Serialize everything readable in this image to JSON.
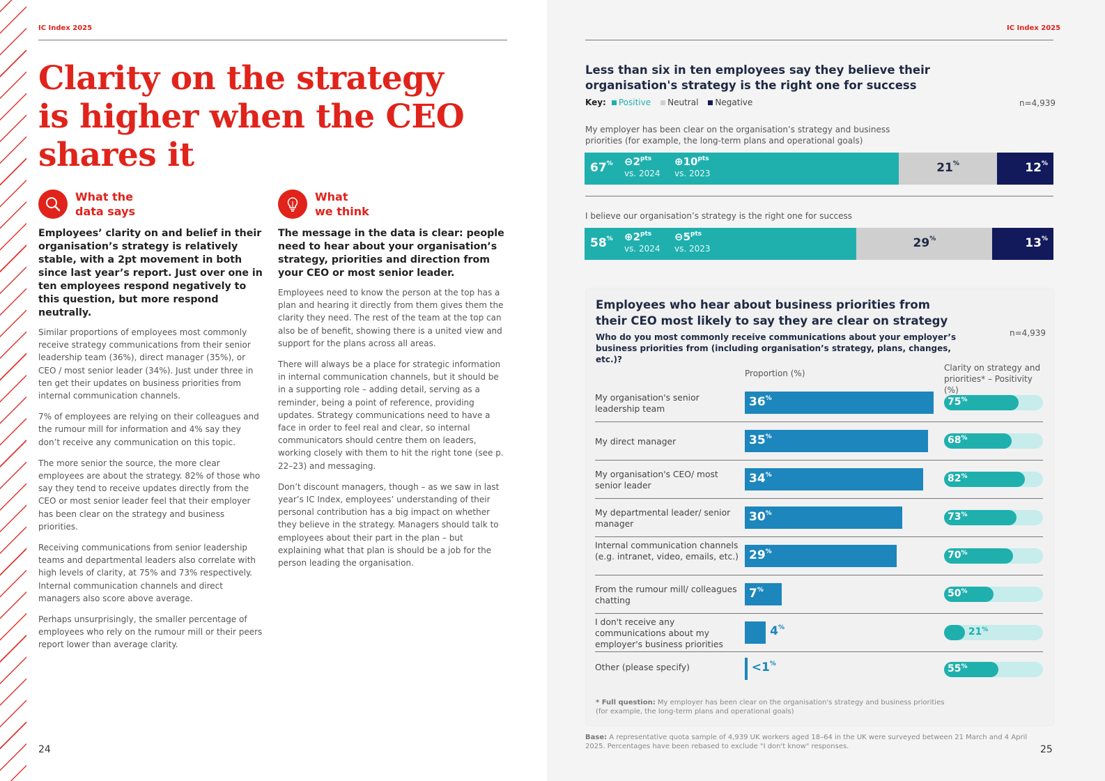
{
  "left_page": {
    "running_head": "IC Index 2025",
    "page_number": "24",
    "title": "Clarity on the strategy is higher when the CEO shares it",
    "col1": {
      "icon": "magnifier-icon",
      "heading": "What the\ndata says",
      "lead": "Employees’ clarity on and belief in their organisation’s strategy is relatively stable, with a 2pt movement in both since last year’s report. Just over one in ten employees respond negatively to this question, but more respond neutrally.",
      "paragraphs": [
        "Similar proportions of employees most commonly receive strategy communications from their senior leadership team (36%), direct manager (35%), or CEO / most senior leader (34%). Just under three in ten get their updates on business priorities from internal communication channels.",
        "7% of employees are relying on their colleagues and the rumour mill for information and 4% say they don’t receive any communication on this topic.",
        "The more senior the source, the more clear employees are about the strategy. 82% of those who say they tend to receive updates directly from the CEO or most senior leader feel that their employer has been clear on the strategy and business priorities.",
        "Receiving communications from senior leadership teams and departmental leaders also correlate with high levels of clarity, at 75% and 73% respectively. Internal communication channels and direct managers also score above average.",
        "Perhaps unsurprisingly, the smaller percentage of employees who rely on the rumour mill or their peers report lower than average clarity."
      ]
    },
    "col2": {
      "icon": "lightbulb-icon",
      "heading": "What\nwe think",
      "lead": "The message in the data is clear: people need to hear about your organisation’s strategy, priorities and direction from your CEO or most senior leader.",
      "paragraphs": [
        "Employees need to know the person at the top has a plan and hearing it directly from them gives them the clarity they need. The rest of the team at the top can also be of benefit, showing there is a united view and support for the plans across all areas.",
        "There will always be a place for strategic information in internal communication channels, but it should be in a supporting role – adding detail, serving as a reminder, being a point of reference, providing updates. Strategy communications need to have a face in order to feel real and clear, so internal communicators should centre them on leaders, working closely with them to hit the right tone (see p. 22–23) and messaging.",
        "Don’t discount managers, though – as we saw in last year’s IC Index, employees’ understanding of their personal contribution has a big impact on whether they believe in the strategy. Managers should talk to employees about their part in the plan – but explaining what that plan is should be a job for the person leading the organisation."
      ]
    }
  },
  "right_page": {
    "running_head": "IC Index 2025",
    "page_number": "25",
    "chart_data": [
      {
        "type": "bar",
        "stacked": true,
        "title": "Less than six in ten employees say they believe their organisation's strategy is the right one for success",
        "key_label": "Key:",
        "n": "n=4,939",
        "series_names": [
          "Positive",
          "Neutral",
          "Negative"
        ],
        "colors": {
          "Positive": "#1fb0ae",
          "Neutral": "#cfcfcf",
          "Negative": "#121a5c"
        },
        "unit": "%",
        "rows": [
          {
            "label": "My employer has been clear on the organisation’s strategy and business priorities (for example, the long-term plans and operational goals)",
            "values": [
              67,
              21,
              12
            ],
            "deltas": [
              {
                "sign": "minus",
                "value": "2",
                "unit": "pts",
                "vs": "vs. 2024"
              },
              {
                "sign": "plus",
                "value": "10",
                "unit": "pts",
                "vs": "vs. 2023"
              }
            ]
          },
          {
            "label": "I believe our organisation’s strategy is the right one for success",
            "values": [
              58,
              29,
              13
            ],
            "deltas": [
              {
                "sign": "plus",
                "value": "2",
                "unit": "pts",
                "vs": "vs. 2024"
              },
              {
                "sign": "minus",
                "value": "5",
                "unit": "pts",
                "vs": "vs. 2023"
              }
            ]
          }
        ]
      },
      {
        "type": "bar",
        "orientation": "horizontal",
        "title": "Employees who hear about business priorities from their CEO most likely to say they are clear on strategy",
        "question": "Who do you most commonly receive communications about your employer’s business priorities from (including organisation’s strategy, plans, changes, etc.)?",
        "n": "n=4,939",
        "column_headers": [
          "Proportion (%)",
          "Clarity on strategy and priorities* – Positivity (%)"
        ],
        "xlim": [
          0,
          100
        ],
        "colors": {
          "proportion": "#1c86bd",
          "clarity": "#1fb0ae",
          "clarity_track": "#c7ecec"
        },
        "categories": [
          "My organisation's senior leadership team",
          "My direct manager",
          "My organisation's CEO/ most senior leader",
          "My departmental leader/ senior manager",
          "Internal communication channels (e.g. intranet, video, emails, etc.)",
          "From the rumour mill/ colleagues chatting",
          "I don't receive any communications about my employer's business priorities",
          "Other (please specify)"
        ],
        "series": [
          {
            "name": "Proportion (%)",
            "values": [
              36,
              35,
              34,
              30,
              29,
              7,
              4,
              0.5
            ],
            "labels": [
              "36",
              "35",
              "34",
              "30",
              "29",
              "7",
              "4",
              "<1"
            ]
          },
          {
            "name": "Clarity on strategy and priorities* – Positivity (%)",
            "values": [
              75,
              68,
              82,
              73,
              70,
              50,
              21,
              55
            ],
            "labels": [
              "75",
              "68",
              "82",
              "73",
              "70",
              "50",
              "21",
              "55"
            ]
          }
        ],
        "footnote_label": "* Full question:",
        "footnote": "My employer has been clear on the organisation's strategy and business priorities (for example, the long-term plans and operational goals)"
      }
    ],
    "base_label": "Base:",
    "base_text": "A representative quota sample of 4,939 UK workers aged 18–64 in the UK were surveyed between 21 March and 4 April 2025. Percentages have been rebased to exclude \"I don't know\" responses."
  }
}
